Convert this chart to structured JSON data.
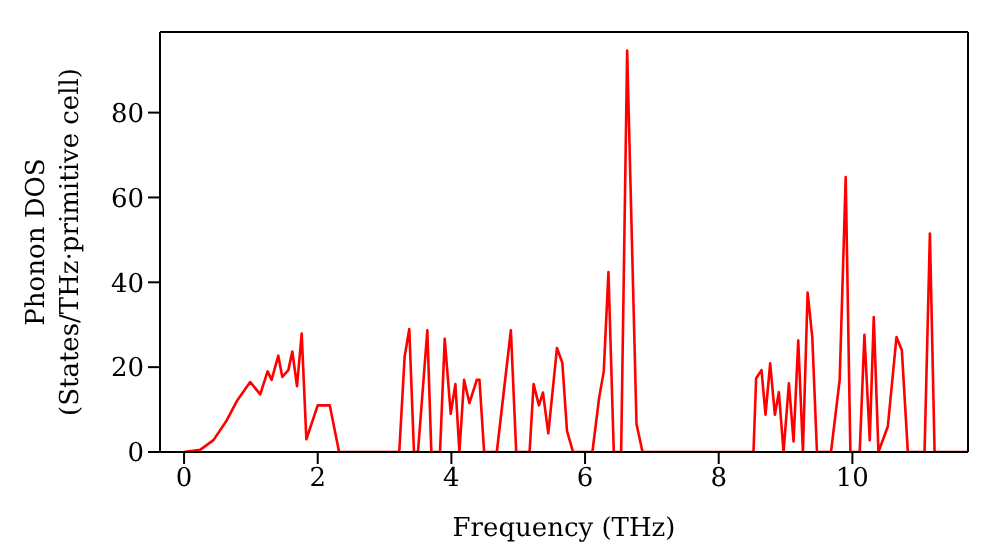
{
  "chart_data": {
    "type": "line",
    "xlabel": "Frequency (THz)",
    "ylabel": "Phonon DOS\n(States/THz·primitive cell)",
    "xlim": [
      -0.36,
      11.73
    ],
    "ylim": [
      0,
      99
    ],
    "xticks": [
      0,
      2,
      4,
      6,
      8,
      10
    ],
    "yticks": [
      0,
      20,
      40,
      60,
      80
    ],
    "grid": false,
    "legend": false,
    "marker": "none",
    "line_style": "solid",
    "x": [
      0,
      0.24,
      0.44,
      0.64,
      0.79,
      0.99,
      1.14,
      1.25,
      1.31,
      1.41,
      1.47,
      1.56,
      1.62,
      1.69,
      1.76,
      1.83,
      2.0,
      2.18,
      2.32,
      3.22,
      3.3,
      3.37,
      3.44,
      3.5,
      3.64,
      3.7,
      3.83,
      3.9,
      3.99,
      4.06,
      4.12,
      4.19,
      4.27,
      4.38,
      4.42,
      4.49,
      4.68,
      4.89,
      4.97,
      5.17,
      5.23,
      5.31,
      5.37,
      5.45,
      5.58,
      5.66,
      5.73,
      5.82,
      6.11,
      6.21,
      6.28,
      6.35,
      6.43,
      6.54,
      6.63,
      6.77,
      6.86,
      8.52,
      8.56,
      8.64,
      8.7,
      8.77,
      8.84,
      8.9,
      8.97,
      9.05,
      9.12,
      9.19,
      9.26,
      9.33,
      9.4,
      9.47,
      9.68,
      9.81,
      9.9,
      9.97,
      10.11,
      10.18,
      10.26,
      10.32,
      10.39,
      10.53,
      10.66,
      10.74,
      10.83,
      11.08,
      11.16,
      11.23,
      11.73
    ],
    "series": [
      {
        "color": "#ff0000",
        "values": [
          0,
          0.5,
          2.8,
          7.5,
          12,
          16.5,
          13.6,
          19,
          17,
          22.7,
          17.7,
          19.3,
          23.7,
          15.5,
          27.9,
          3,
          11,
          11,
          0,
          0,
          22.4,
          29,
          0,
          0,
          28.7,
          0,
          0,
          26.7,
          9,
          16,
          0,
          17,
          11.5,
          17,
          17,
          0,
          0,
          28.7,
          0,
          0,
          16,
          11,
          14,
          4.4,
          24.5,
          21,
          5,
          0,
          0,
          12.7,
          19,
          42.4,
          0,
          0,
          94.6,
          6.6,
          0,
          0,
          17.4,
          19.3,
          8.8,
          20.9,
          8.8,
          14.1,
          0,
          16.2,
          2.5,
          26.3,
          0,
          37.6,
          27.1,
          0,
          0,
          17,
          64.8,
          0,
          0,
          27.6,
          2.8,
          31.8,
          0,
          6,
          27.1,
          24,
          0,
          0,
          51.5,
          0,
          0
        ]
      }
    ]
  }
}
